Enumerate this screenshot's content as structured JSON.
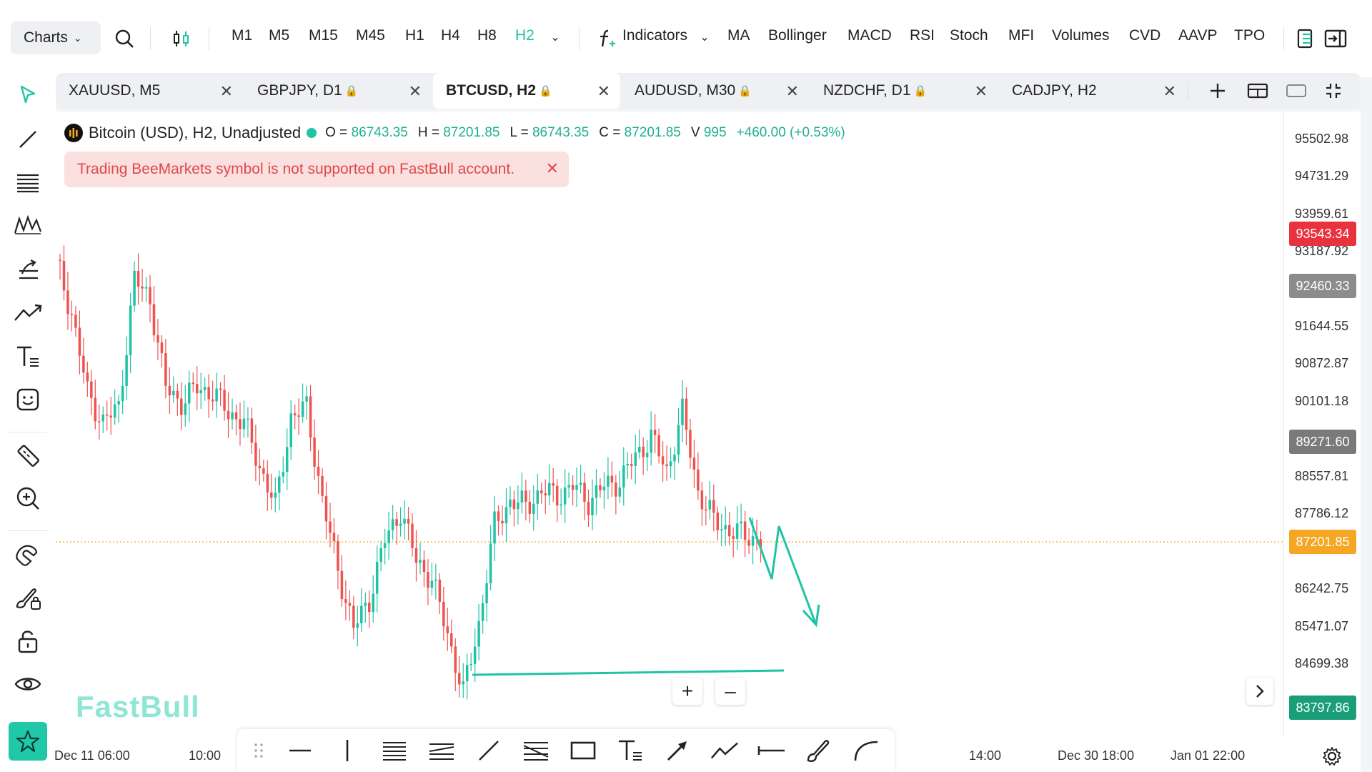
{
  "toolbar": {
    "charts_label": "Charts",
    "timeframes": [
      "M1",
      "M5",
      "M15",
      "M45",
      "H1",
      "H4",
      "H8",
      "H2"
    ],
    "active_timeframe": "H2",
    "indicators_label": "Indicators",
    "indicators": [
      "MA",
      "Bollinger",
      "MACD",
      "RSI",
      "Stoch",
      "MFI",
      "Volumes",
      "CVD",
      "AAVP",
      "TPO"
    ]
  },
  "tabs": [
    {
      "label": "XAUUSD, M5",
      "locked": false
    },
    {
      "label": "GBPJPY, D1",
      "locked": true
    },
    {
      "label": "BTCUSD, H2",
      "locked": true,
      "active": true
    },
    {
      "label": "AUDUSD, M30",
      "locked": true
    },
    {
      "label": "NZDCHF, D1",
      "locked": true
    },
    {
      "label": "CADJPY, H2",
      "locked": false
    }
  ],
  "legend": {
    "symbol": "Bitcoin (USD), H2, Unadjusted",
    "o_label": "O =",
    "o": "86743.35",
    "h_label": "H =",
    "h": "87201.85",
    "l_label": "L =",
    "l": "86743.35",
    "c_label": "C =",
    "c": "87201.85",
    "v_label": "V",
    "v": "995",
    "change": "+460.00 (+0.53%)"
  },
  "alert": {
    "message": "Trading BeeMarkets symbol is not supported on FastBull account."
  },
  "price_axis": [
    "95502.98",
    "94731.29",
    "93959.61",
    "93187.92",
    "91644.55",
    "90872.87",
    "90101.18",
    "88557.81",
    "87786.12",
    "86242.75",
    "85471.07",
    "84699.38"
  ],
  "price_tags": [
    {
      "value": "93543.34",
      "color": "#e8333f"
    },
    {
      "value": "92460.33",
      "color": "#8c8c8c"
    },
    {
      "value": "89271.60",
      "color": "#7a7a7a"
    },
    {
      "value": "87201.85",
      "color": "#f5a623"
    },
    {
      "value": "83797.86",
      "color": "#1a9e78"
    }
  ],
  "time_axis": [
    "Dec 11 06:00",
    "10:00",
    "14:00",
    "Dec 30 18:00",
    "Jan 01 22:00"
  ],
  "watermark": "FastBull",
  "colors": {
    "up": "#1fc3a6",
    "down": "#ef5350",
    "accent": "#1fc3a6"
  },
  "chart_data": {
    "type": "candlestick",
    "symbol": "Bitcoin (USD)",
    "timeframe": "H2",
    "ylim": [
      83797.86,
      96000
    ],
    "close_series": [
      92900,
      91800,
      90200,
      89600,
      89900,
      92500,
      92100,
      90300,
      90000,
      90300,
      90200,
      89800,
      89600,
      88700,
      87900,
      89700,
      89900,
      88000,
      86600,
      85400,
      86000,
      87200,
      87800,
      86800,
      86400,
      85300,
      84100,
      85500,
      87500,
      88000,
      87900,
      88200,
      88100,
      88300,
      88000,
      88300,
      88400,
      88900,
      89300,
      88600,
      89800,
      88200,
      87600,
      87400,
      87300,
      87200
    ]
  }
}
